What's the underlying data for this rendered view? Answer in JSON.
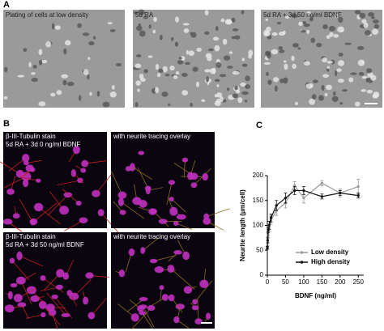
{
  "panel_a": {
    "label": "A",
    "images": [
      {
        "caption": "Plating of cells at low density"
      },
      {
        "caption": "5d RA"
      },
      {
        "caption": "5d RA + 3d 50 ng/ml BDNF"
      }
    ]
  },
  "panel_b": {
    "label": "B",
    "images": [
      {
        "caption_lines": [
          "β-III-Tubulin stain",
          "5d RA + 3d 0 ng/ml BDNF"
        ]
      },
      {
        "caption_lines": [
          "with neurite tracing overlay"
        ]
      },
      {
        "caption_lines": [
          "β-III-Tubulin stain",
          "5d RA + 3d 50 ng/ml BDNF"
        ]
      },
      {
        "caption_lines": [
          "with neurite tracing overlay"
        ]
      }
    ]
  },
  "panel_c": {
    "label": "C"
  },
  "chart_data": {
    "type": "line",
    "xlabel": "BDNF (ng/ml)",
    "ylabel": "Neurite length (µm/cell)",
    "x": [
      0,
      1,
      2.5,
      5,
      10,
      25,
      50,
      75,
      100,
      150,
      200,
      250
    ],
    "series": [
      {
        "name": "Low density",
        "color": "#999999",
        "values": [
          55,
          65,
          80,
          95,
          110,
          130,
          145,
          180,
          155,
          185,
          165,
          178
        ],
        "errors": [
          3,
          5,
          5,
          8,
          8,
          10,
          10,
          8,
          10,
          5,
          8,
          15
        ]
      },
      {
        "name": "High density",
        "color": "#111111",
        "values": [
          55,
          70,
          90,
          100,
          115,
          140,
          155,
          170,
          170,
          158,
          165,
          160
        ],
        "errors": [
          3,
          5,
          5,
          8,
          8,
          10,
          10,
          8,
          8,
          5,
          5,
          5
        ]
      }
    ],
    "xlim": [
      0,
      265
    ],
    "xticks": [
      0,
      50,
      100,
      150,
      200,
      250
    ],
    "ylim": [
      0,
      200
    ],
    "yticks": [
      0,
      50,
      100,
      150,
      200
    ],
    "legend": "lower right"
  }
}
